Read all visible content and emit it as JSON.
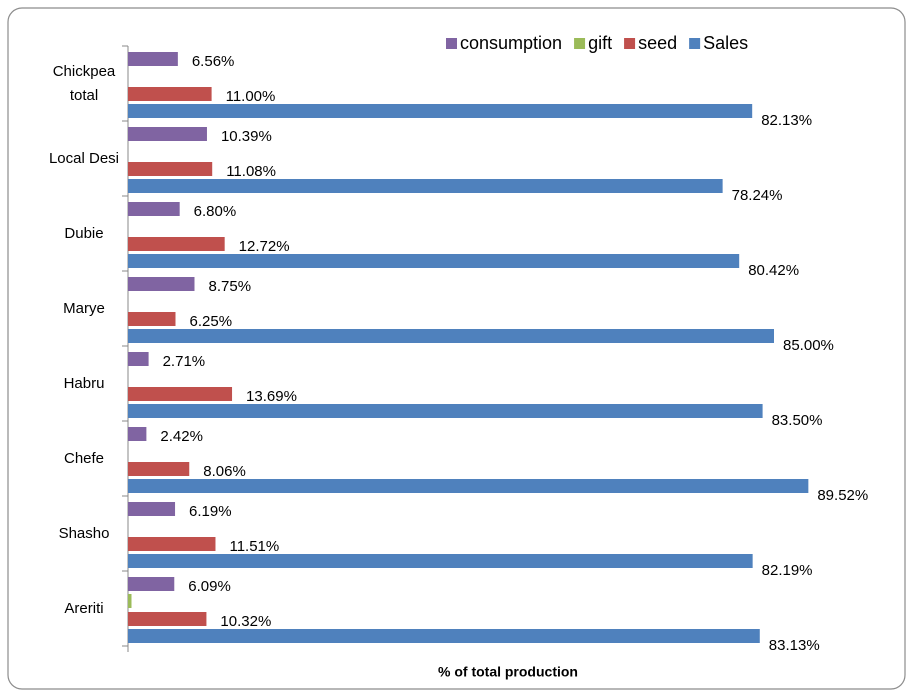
{
  "chart_data": {
    "type": "bar",
    "orientation": "horizontal",
    "categories": [
      "Chickpea total",
      "Local Desi",
      "Dubie",
      "Marye",
      "Habru",
      "Chefe",
      "Shasho",
      "Areriti"
    ],
    "series": [
      {
        "name": "consumption",
        "color": "#8064a2",
        "values": [
          6.56,
          10.39,
          6.8,
          8.75,
          2.71,
          2.42,
          6.19,
          6.09
        ],
        "value_labels": [
          "6.56%",
          "10.39%",
          "6.80%",
          "8.75%",
          "2.71%",
          "2.42%",
          "6.19%",
          "6.09%"
        ]
      },
      {
        "name": "gift",
        "color": "#9bbb59",
        "values": [
          0,
          0,
          0,
          0,
          0,
          0,
          0,
          0.46
        ]
      },
      {
        "name": "seed",
        "color": "#c0504d",
        "values": [
          11.0,
          11.08,
          12.72,
          6.25,
          13.69,
          8.06,
          11.51,
          10.32
        ],
        "value_labels": [
          "11.00%",
          "11.08%",
          "12.72%",
          "6.25%",
          "13.69%",
          "8.06%",
          "11.51%",
          "10.32%"
        ]
      },
      {
        "name": "Sales",
        "color": "#4f81bd",
        "values": [
          82.13,
          78.24,
          80.42,
          85.0,
          83.5,
          89.52,
          82.19,
          83.13
        ],
        "value_labels": [
          "82.13%",
          "78.24%",
          "80.42%",
          "85.00%",
          "83.50%",
          "89.52%",
          "82.19%",
          "83.13%"
        ]
      }
    ],
    "xlim": [
      0,
      100
    ],
    "x_label": "% of total production",
    "legend": "top-right"
  }
}
